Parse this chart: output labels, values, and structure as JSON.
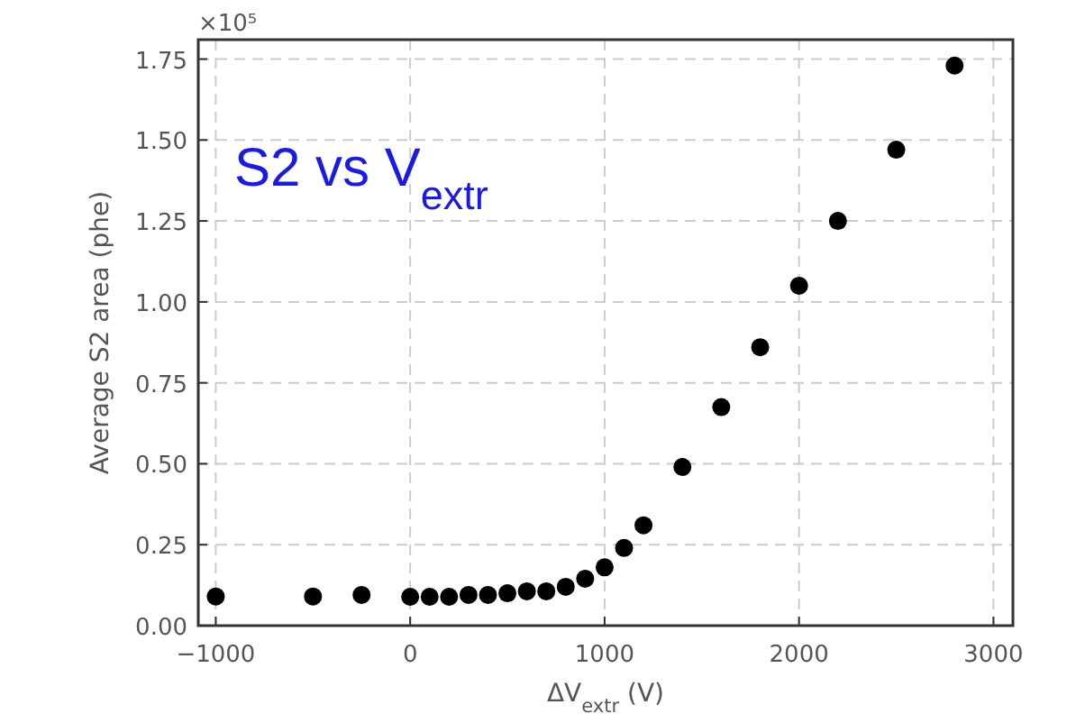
{
  "chart_data": {
    "type": "scatter",
    "xlabel": "ΔV$_{extr}$ (V)",
    "ylabel": "Average S2 area (phe)",
    "annotations": [
      "S2 vs V$_{extr}$",
      "×10⁵"
    ],
    "x": [
      -1000,
      -500,
      -250,
      0,
      100,
      200,
      300,
      400,
      500,
      600,
      700,
      800,
      900,
      1000,
      1100,
      1200,
      1400,
      1600,
      1800,
      2000,
      2200,
      2500,
      2800
    ],
    "series": [
      {
        "color": "#000000",
        "values": [
          0.09,
          0.09,
          0.095,
          0.089,
          0.089,
          0.089,
          0.095,
          0.095,
          0.1,
          0.106,
          0.106,
          0.12,
          0.145,
          0.18,
          0.24,
          0.31,
          0.49,
          0.675,
          0.86,
          1.05,
          1.25,
          1.47,
          1.73
        ]
      }
    ],
    "xlim": [
      -1090,
      3100
    ],
    "ylim": [
      0,
      1.81
    ],
    "xticks": [
      {
        "value": -1000,
        "label": "−1000"
      },
      0,
      1000,
      2000,
      3000
    ],
    "yticks": [
      {
        "value": 0,
        "label": "0.00"
      },
      {
        "value": 0.25,
        "label": "0.25"
      },
      {
        "value": 0.5,
        "label": "0.50"
      },
      {
        "value": 0.75,
        "label": "0.75"
      },
      {
        "value": 1,
        "label": "1.00"
      },
      {
        "value": 1.25,
        "label": "1.25"
      },
      {
        "value": 1.5,
        "label": "1.50"
      },
      {
        "value": 1.75,
        "label": "1.75"
      }
    ],
    "grid": true,
    "marker": "circle"
  }
}
